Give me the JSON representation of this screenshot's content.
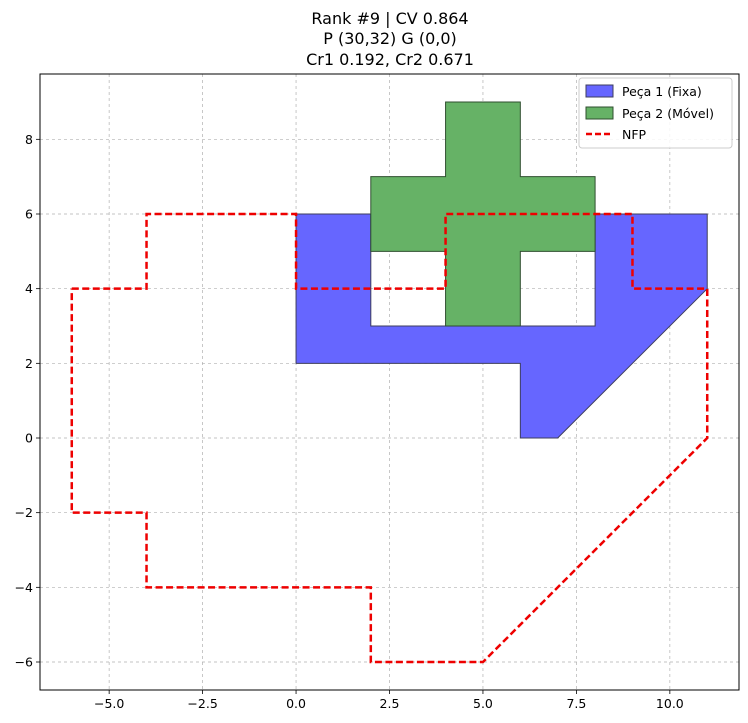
{
  "chart_data": {
    "type": "polygon-plot",
    "title": [
      "Rank #9 | CV 0.864",
      "P (30,32) G (0,0)",
      "Cr1 0.192, Cr2 0.671"
    ],
    "xlabel": "",
    "ylabel": "",
    "xlim": [
      -6.85,
      11.85
    ],
    "ylim": [
      -6.75,
      9.75
    ],
    "xticks": [
      -5.0,
      -2.5,
      0.0,
      2.5,
      5.0,
      7.5,
      10.0
    ],
    "xtick_labels": [
      "−5.0",
      "−2.5",
      "0.0",
      "2.5",
      "5.0",
      "7.5",
      "10.0"
    ],
    "yticks": [
      -6,
      -4,
      -2,
      0,
      2,
      4,
      6,
      8
    ],
    "ytick_labels": [
      "−6",
      "−4",
      "−2",
      "0",
      "2",
      "4",
      "6",
      "8"
    ],
    "grid": true,
    "legend_position": "top-right",
    "series": [
      {
        "name": "Peça 1 (Fixa)",
        "kind": "filled-polygon",
        "fill": "#6666ff",
        "stroke": "#3d3d5c",
        "points": [
          [
            0,
            2
          ],
          [
            0,
            6
          ],
          [
            2,
            6
          ],
          [
            2,
            3
          ],
          [
            8,
            3
          ],
          [
            8,
            6
          ],
          [
            11,
            6
          ],
          [
            11,
            4
          ],
          [
            7,
            0
          ],
          [
            6,
            0
          ],
          [
            6,
            2
          ]
        ]
      },
      {
        "name": "Peça 2 (Móvel)",
        "kind": "filled-polygon",
        "fill": "#66b266",
        "stroke": "#2f4f2f",
        "points": [
          [
            4,
            3
          ],
          [
            6,
            3
          ],
          [
            6,
            5
          ],
          [
            8,
            5
          ],
          [
            8,
            7
          ],
          [
            6,
            7
          ],
          [
            6,
            9
          ],
          [
            4,
            9
          ],
          [
            4,
            7
          ],
          [
            2,
            7
          ],
          [
            2,
            5
          ],
          [
            4,
            5
          ]
        ]
      },
      {
        "name": "NFP",
        "kind": "dashed-outline",
        "stroke": "#ee0000",
        "points": [
          [
            -6,
            4
          ],
          [
            -4,
            4
          ],
          [
            -4,
            6
          ],
          [
            0,
            6
          ],
          [
            0,
            4
          ],
          [
            4,
            4
          ],
          [
            4,
            6
          ],
          [
            9,
            6
          ],
          [
            9,
            4
          ],
          [
            11,
            4
          ],
          [
            11,
            0
          ],
          [
            5,
            -6
          ],
          [
            2,
            -6
          ],
          [
            2,
            -4
          ],
          [
            -4,
            -4
          ],
          [
            -4,
            -2
          ],
          [
            -6,
            -2
          ],
          [
            -6,
            4
          ]
        ]
      }
    ]
  }
}
